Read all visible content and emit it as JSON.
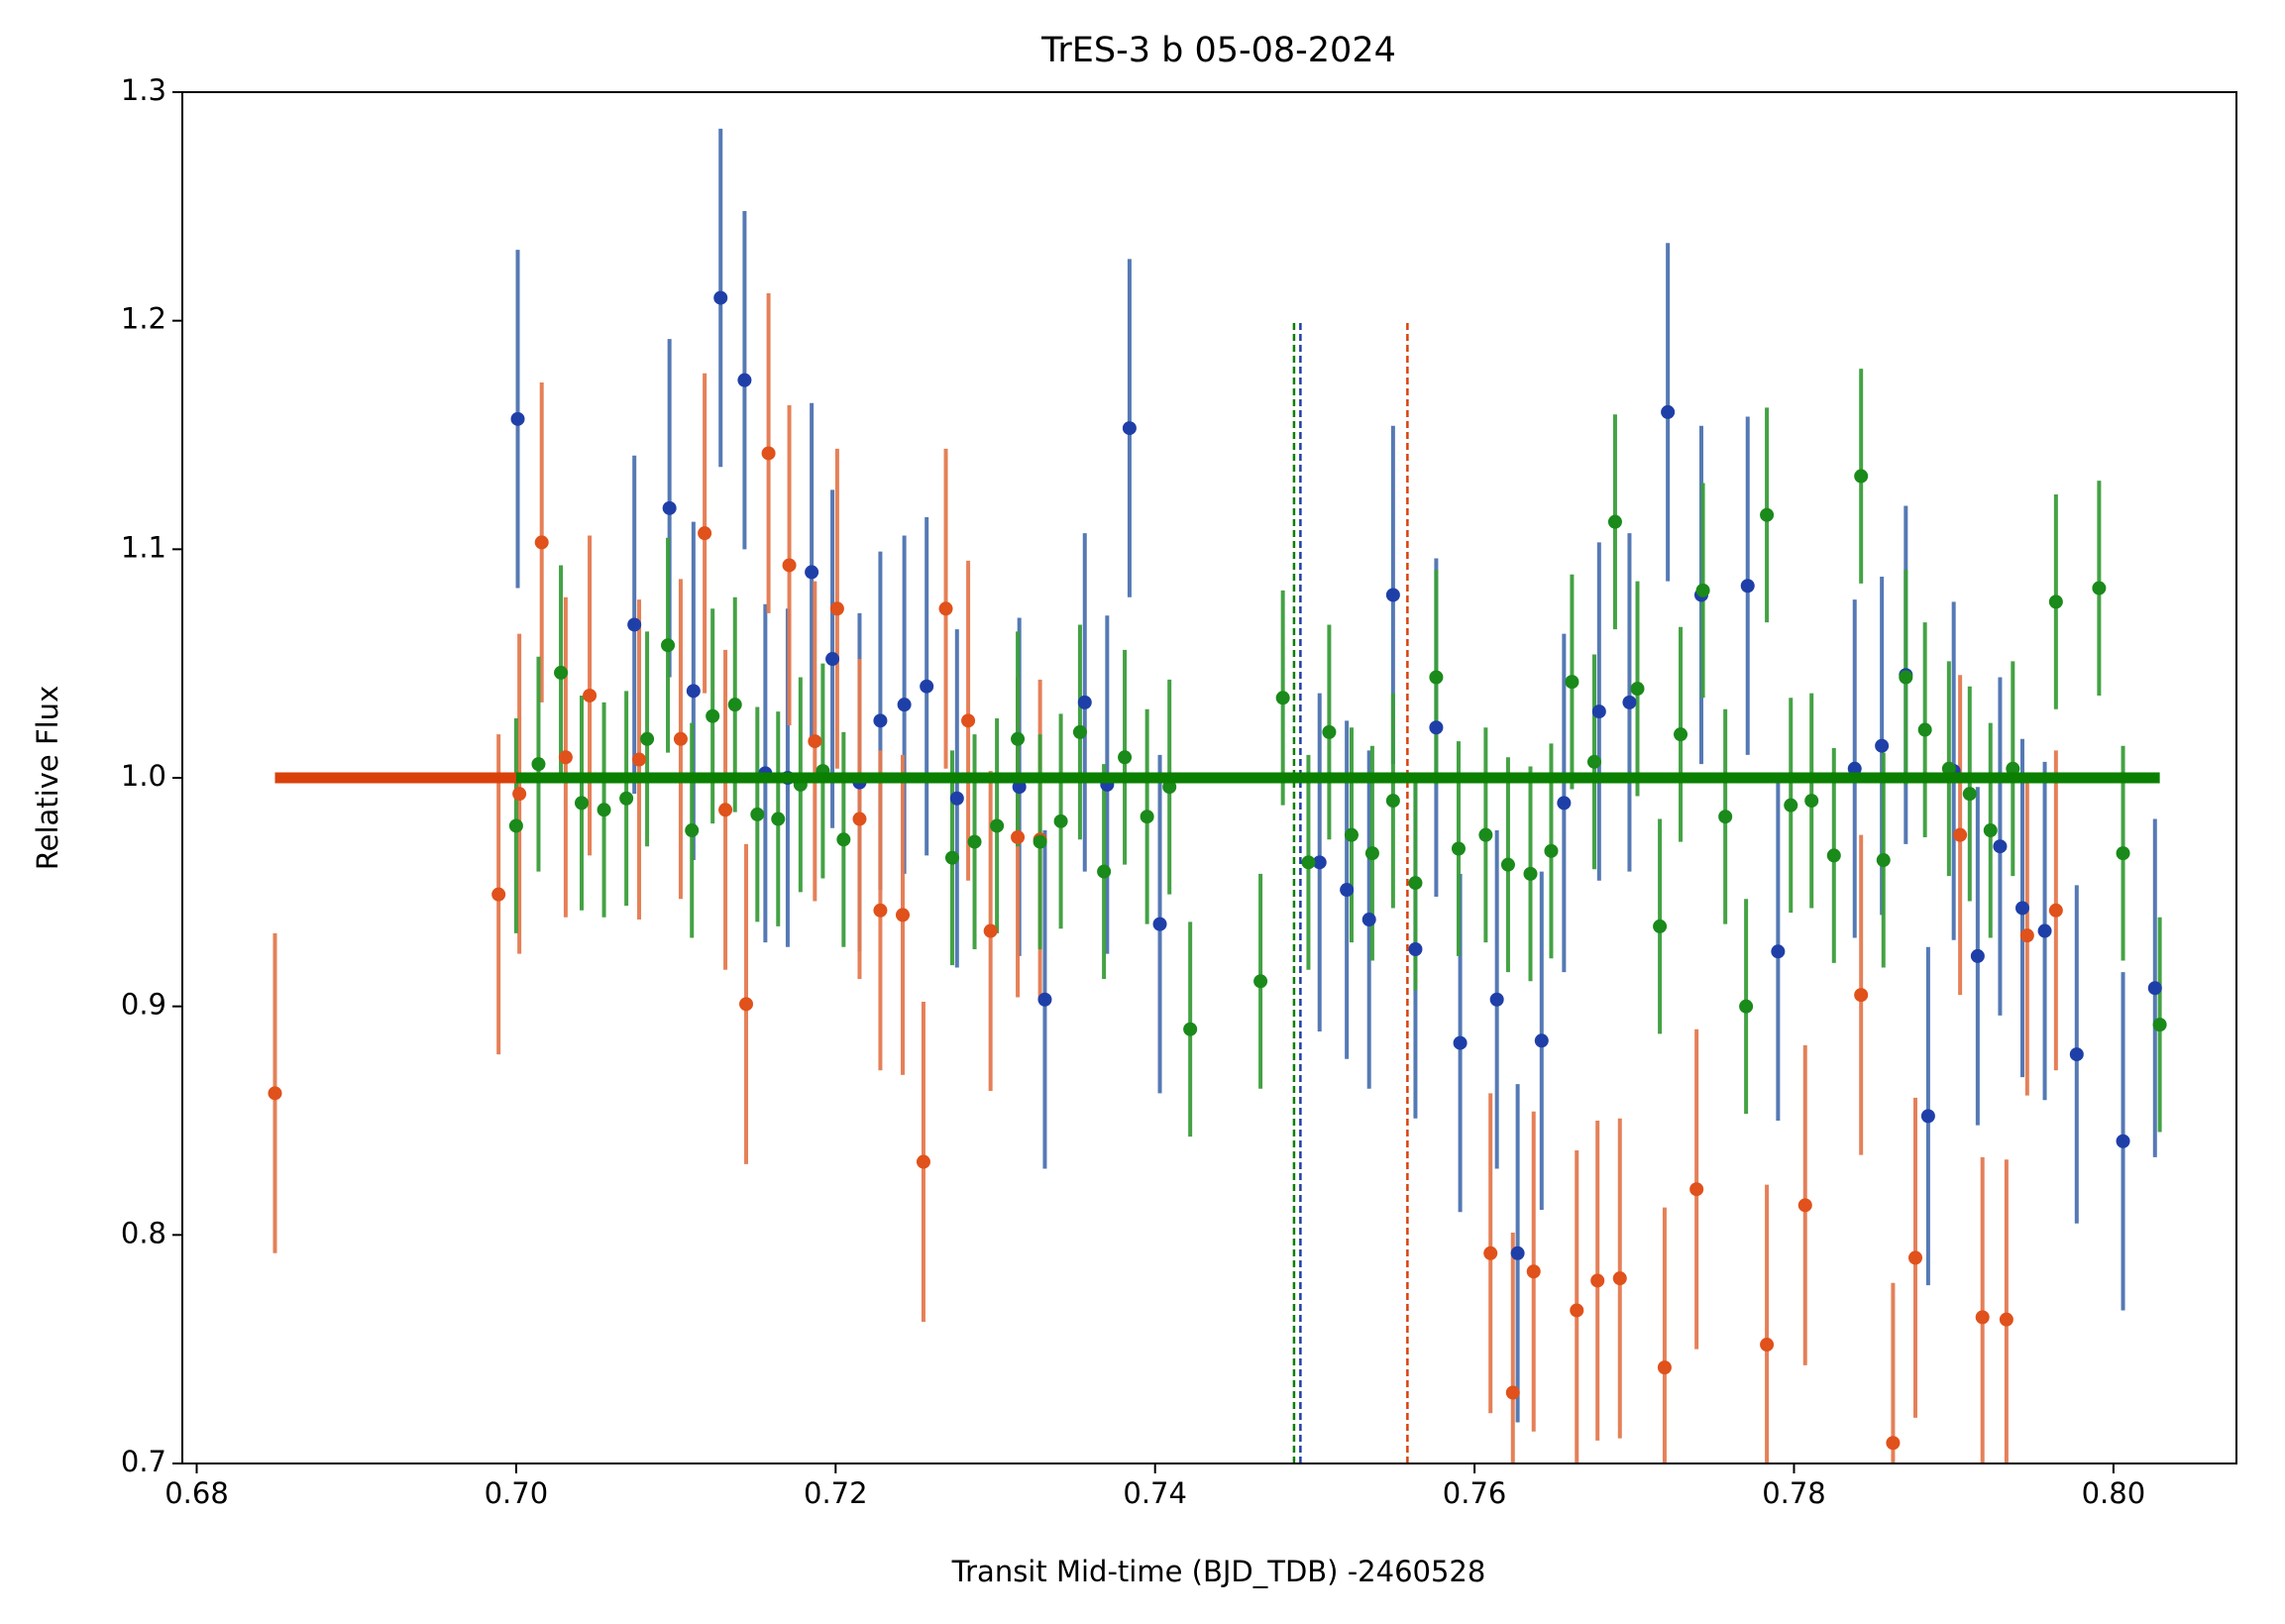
{
  "chart_data": {
    "type": "errorbar_scatter",
    "title": "TrES-3 b  05-08-2024",
    "xlabel": "Transit Mid-time (BJD_TDB) -2460528",
    "ylabel": "Relative Flux",
    "xlim": [
      0.6791,
      0.8077
    ],
    "ylim": [
      0.7,
      1.3
    ],
    "xticks": [
      0.68,
      {
        "value": 0.7,
        "label": "0.70"
      },
      0.72,
      0.74,
      0.76,
      0.78,
      {
        "value": 0.8,
        "label": "0.80"
      }
    ],
    "yticks": [
      0.7,
      0.8,
      0.9,
      {
        "value": 1.0,
        "label": "1.0"
      },
      1.1,
      1.2,
      1.3
    ],
    "series": [
      {
        "color": "#1f3fa8",
        "bar_color": "#4c72b0",
        "error": 0.074,
        "x": [
          0.7001,
          0.7074,
          0.7096,
          0.7111,
          0.7128,
          0.7143,
          0.7156,
          0.717,
          0.7185,
          0.7198,
          0.7215,
          0.7228,
          0.7243,
          0.7257,
          0.7276,
          0.7315,
          0.7331,
          0.7356,
          0.737,
          0.7384,
          0.7403,
          0.7503,
          0.752,
          0.7534,
          0.7549,
          0.7563,
          0.7576,
          0.7591,
          0.7614,
          0.7627,
          0.7642,
          0.7656,
          0.7678,
          0.7697,
          0.7721,
          0.7742,
          0.7771,
          0.779,
          0.7838,
          0.7855,
          0.787,
          0.7884,
          0.79,
          0.7915,
          0.7929,
          0.7943,
          0.7957,
          0.7977,
          0.8006,
          0.8026
        ],
        "values": [
          1.157,
          1.067,
          1.118,
          1.038,
          1.21,
          1.174,
          1.002,
          1.0,
          1.09,
          1.052,
          0.998,
          1.025,
          1.032,
          1.04,
          0.991,
          0.996,
          0.903,
          1.033,
          0.997,
          1.153,
          0.936,
          0.963,
          0.951,
          0.938,
          1.08,
          0.925,
          1.022,
          0.884,
          0.903,
          0.792,
          0.885,
          0.989,
          1.029,
          1.033,
          1.16,
          1.08,
          1.084,
          0.924,
          1.004,
          1.014,
          1.045,
          0.852,
          1.003,
          0.922,
          0.97,
          0.943,
          0.933,
          0.879,
          0.841,
          0.908
        ]
      },
      {
        "color": "#e0511b",
        "bar_color": "#e47a50",
        "error": 0.07,
        "x": [
          0.6849,
          0.6989,
          0.7002,
          0.7016,
          0.7031,
          0.7046,
          0.7077,
          0.7103,
          0.7118,
          0.7131,
          0.7144,
          0.7158,
          0.7171,
          0.7187,
          0.7201,
          0.7215,
          0.7228,
          0.7242,
          0.7255,
          0.7269,
          0.7283,
          0.7297,
          0.7314,
          0.7328,
          0.761,
          0.7624,
          0.7637,
          0.7664,
          0.7677,
          0.7691,
          0.7719,
          0.7739,
          0.7783,
          0.7807,
          0.7842,
          0.7862,
          0.7876,
          0.7904,
          0.7918,
          0.7933,
          0.7946,
          0.7964
        ],
        "values": [
          0.862,
          0.949,
          0.993,
          1.103,
          1.009,
          1.036,
          1.008,
          1.017,
          1.107,
          0.986,
          0.901,
          1.142,
          1.093,
          1.016,
          1.074,
          0.982,
          0.942,
          0.94,
          0.832,
          1.074,
          1.025,
          0.933,
          0.974,
          0.973,
          0.792,
          0.731,
          0.784,
          0.767,
          0.78,
          0.781,
          0.742,
          0.82,
          0.752,
          0.813,
          0.905,
          0.709,
          0.79,
          0.975,
          0.764,
          0.763,
          0.931,
          0.942
        ]
      },
      {
        "color": "#1a8a1a",
        "bar_color": "#3a9e3a",
        "error": 0.047,
        "x": [
          0.7,
          0.7014,
          0.7028,
          0.7041,
          0.7055,
          0.7069,
          0.7082,
          0.7095,
          0.711,
          0.7123,
          0.7137,
          0.7151,
          0.7164,
          0.7178,
          0.7192,
          0.7205,
          0.7273,
          0.7287,
          0.7301,
          0.7314,
          0.7328,
          0.7341,
          0.7353,
          0.7368,
          0.7381,
          0.7395,
          0.7409,
          0.7422,
          0.7466,
          0.748,
          0.7496,
          0.7509,
          0.7523,
          0.7536,
          0.7549,
          0.7563,
          0.7576,
          0.759,
          0.7607,
          0.7621,
          0.7635,
          0.7648,
          0.7661,
          0.7675,
          0.7688,
          0.7702,
          0.7716,
          0.7729,
          0.7743,
          0.7757,
          0.777,
          0.7783,
          0.7798,
          0.7811,
          0.7825,
          0.7842,
          0.7856,
          0.787,
          0.7882,
          0.7897,
          0.791,
          0.7923,
          0.7937,
          0.7964,
          0.7991,
          0.8006,
          0.8029
        ],
        "values": [
          0.979,
          1.006,
          1.046,
          0.989,
          0.986,
          0.991,
          1.017,
          1.058,
          0.977,
          1.027,
          1.032,
          0.984,
          0.982,
          0.997,
          1.003,
          0.973,
          0.965,
          0.972,
          0.979,
          1.017,
          0.972,
          0.981,
          1.02,
          0.959,
          1.009,
          0.983,
          0.996,
          0.89,
          0.911,
          1.035,
          0.963,
          1.02,
          0.975,
          0.967,
          0.99,
          0.954,
          1.044,
          0.969,
          0.975,
          0.962,
          0.958,
          0.968,
          1.042,
          1.007,
          1.112,
          1.039,
          0.935,
          1.019,
          1.082,
          0.983,
          0.9,
          1.115,
          0.988,
          0.99,
          0.966,
          1.132,
          0.964,
          1.044,
          1.021,
          1.004,
          0.993,
          0.977,
          1.004,
          1.077,
          1.083,
          0.967,
          0.892
        ]
      }
    ],
    "hlines": [
      {
        "y": 1.0,
        "x": [
          0.6849,
          0.7964
        ],
        "color": "#d9410b"
      },
      {
        "y": 1.0,
        "x": [
          0.7,
          0.8029
        ],
        "color": "#0a7f00"
      }
    ],
    "vlines": [
      {
        "x": 0.7487,
        "y": [
          0.7,
          1.2
        ],
        "color": "#0a7f00"
      },
      {
        "x": 0.7491,
        "y": [
          0.7,
          1.2
        ],
        "color": "#1f3fa8"
      },
      {
        "x": 0.7558,
        "y": [
          0.7,
          1.2
        ],
        "color": "#d9410b"
      }
    ]
  }
}
